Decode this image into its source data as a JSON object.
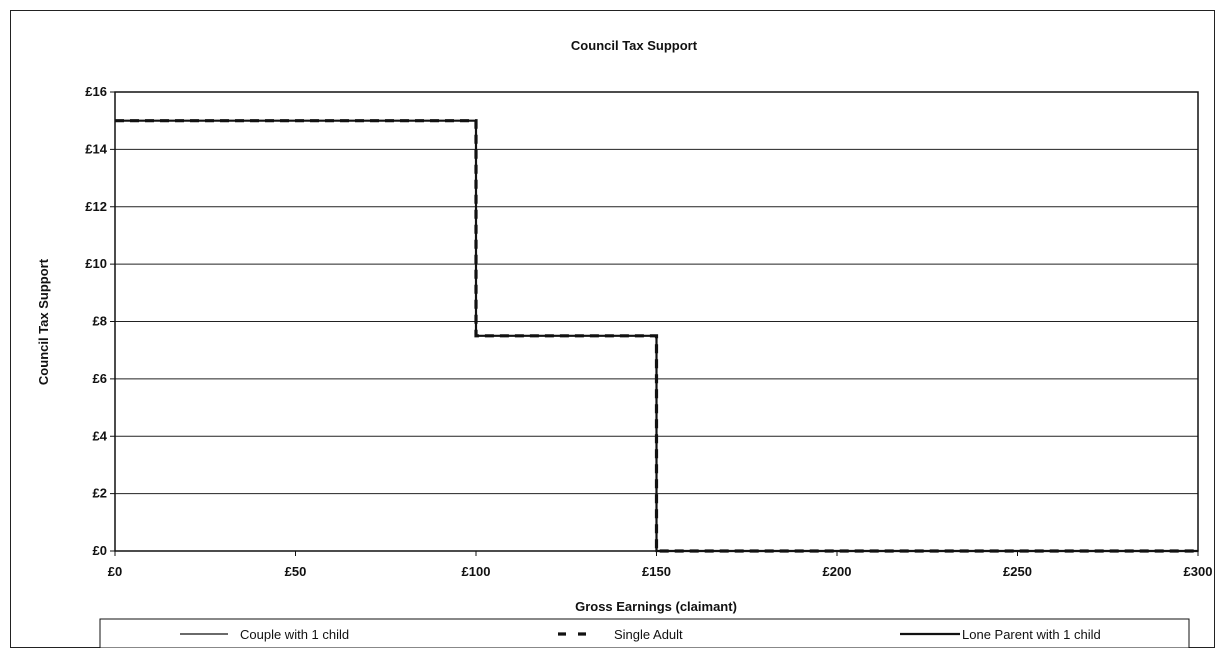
{
  "chart_data": {
    "type": "line",
    "title": "Council Tax Support",
    "xlabel": "Gross Earnings (claimant)",
    "ylabel": "Council Tax Support",
    "xlim": [
      0,
      300
    ],
    "ylim": [
      0,
      16
    ],
    "x_ticks": [
      0,
      50,
      100,
      150,
      200,
      250,
      300
    ],
    "x_tick_labels": [
      "£0",
      "£50",
      "£100",
      "£150",
      "£200",
      "£250",
      "£300"
    ],
    "y_ticks": [
      0,
      2,
      4,
      6,
      8,
      10,
      12,
      14,
      16
    ],
    "y_tick_labels": [
      "£0",
      "£2",
      "£4",
      "£6",
      "£8",
      "£10",
      "£12",
      "£14",
      "£16"
    ],
    "grid": "horizontal",
    "legend_position": "bottom",
    "series": [
      {
        "name": "Couple with 1 child",
        "style": "thin-solid",
        "color": "#111111",
        "points": [
          [
            0,
            15
          ],
          [
            100,
            15
          ],
          [
            100,
            7.5
          ],
          [
            150,
            7.5
          ],
          [
            150,
            0
          ],
          [
            300,
            0
          ]
        ]
      },
      {
        "name": "Single Adult",
        "style": "dashed",
        "color": "#111111",
        "points": [
          [
            0,
            15
          ],
          [
            100,
            15
          ],
          [
            100,
            7.5
          ],
          [
            150,
            7.5
          ],
          [
            150,
            0
          ],
          [
            300,
            0
          ]
        ]
      },
      {
        "name": "Lone Parent with 1 child",
        "style": "thick-solid",
        "color": "#111111",
        "points": [
          [
            0,
            15
          ],
          [
            100,
            15
          ],
          [
            100,
            7.5
          ],
          [
            150,
            7.5
          ],
          [
            150,
            0
          ],
          [
            300,
            0
          ]
        ]
      }
    ]
  }
}
